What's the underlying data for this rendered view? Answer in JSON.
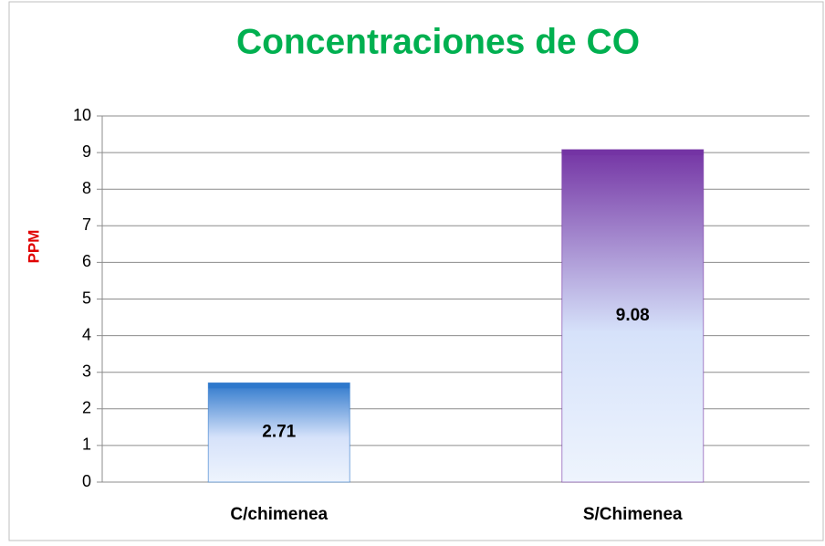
{
  "chart_data": {
    "type": "bar",
    "title": "Concentraciones de CO",
    "y_label": "PPM",
    "categories": [
      "C/chimenea",
      "S/Chimenea"
    ],
    "values": [
      2.71,
      9.08
    ],
    "colors": [
      "#2e78cc",
      "#7434a4"
    ],
    "ylim": [
      0,
      10
    ],
    "yticks": [
      0,
      1,
      2,
      3,
      4,
      5,
      6,
      7,
      8,
      9,
      10
    ],
    "grid": true
  }
}
